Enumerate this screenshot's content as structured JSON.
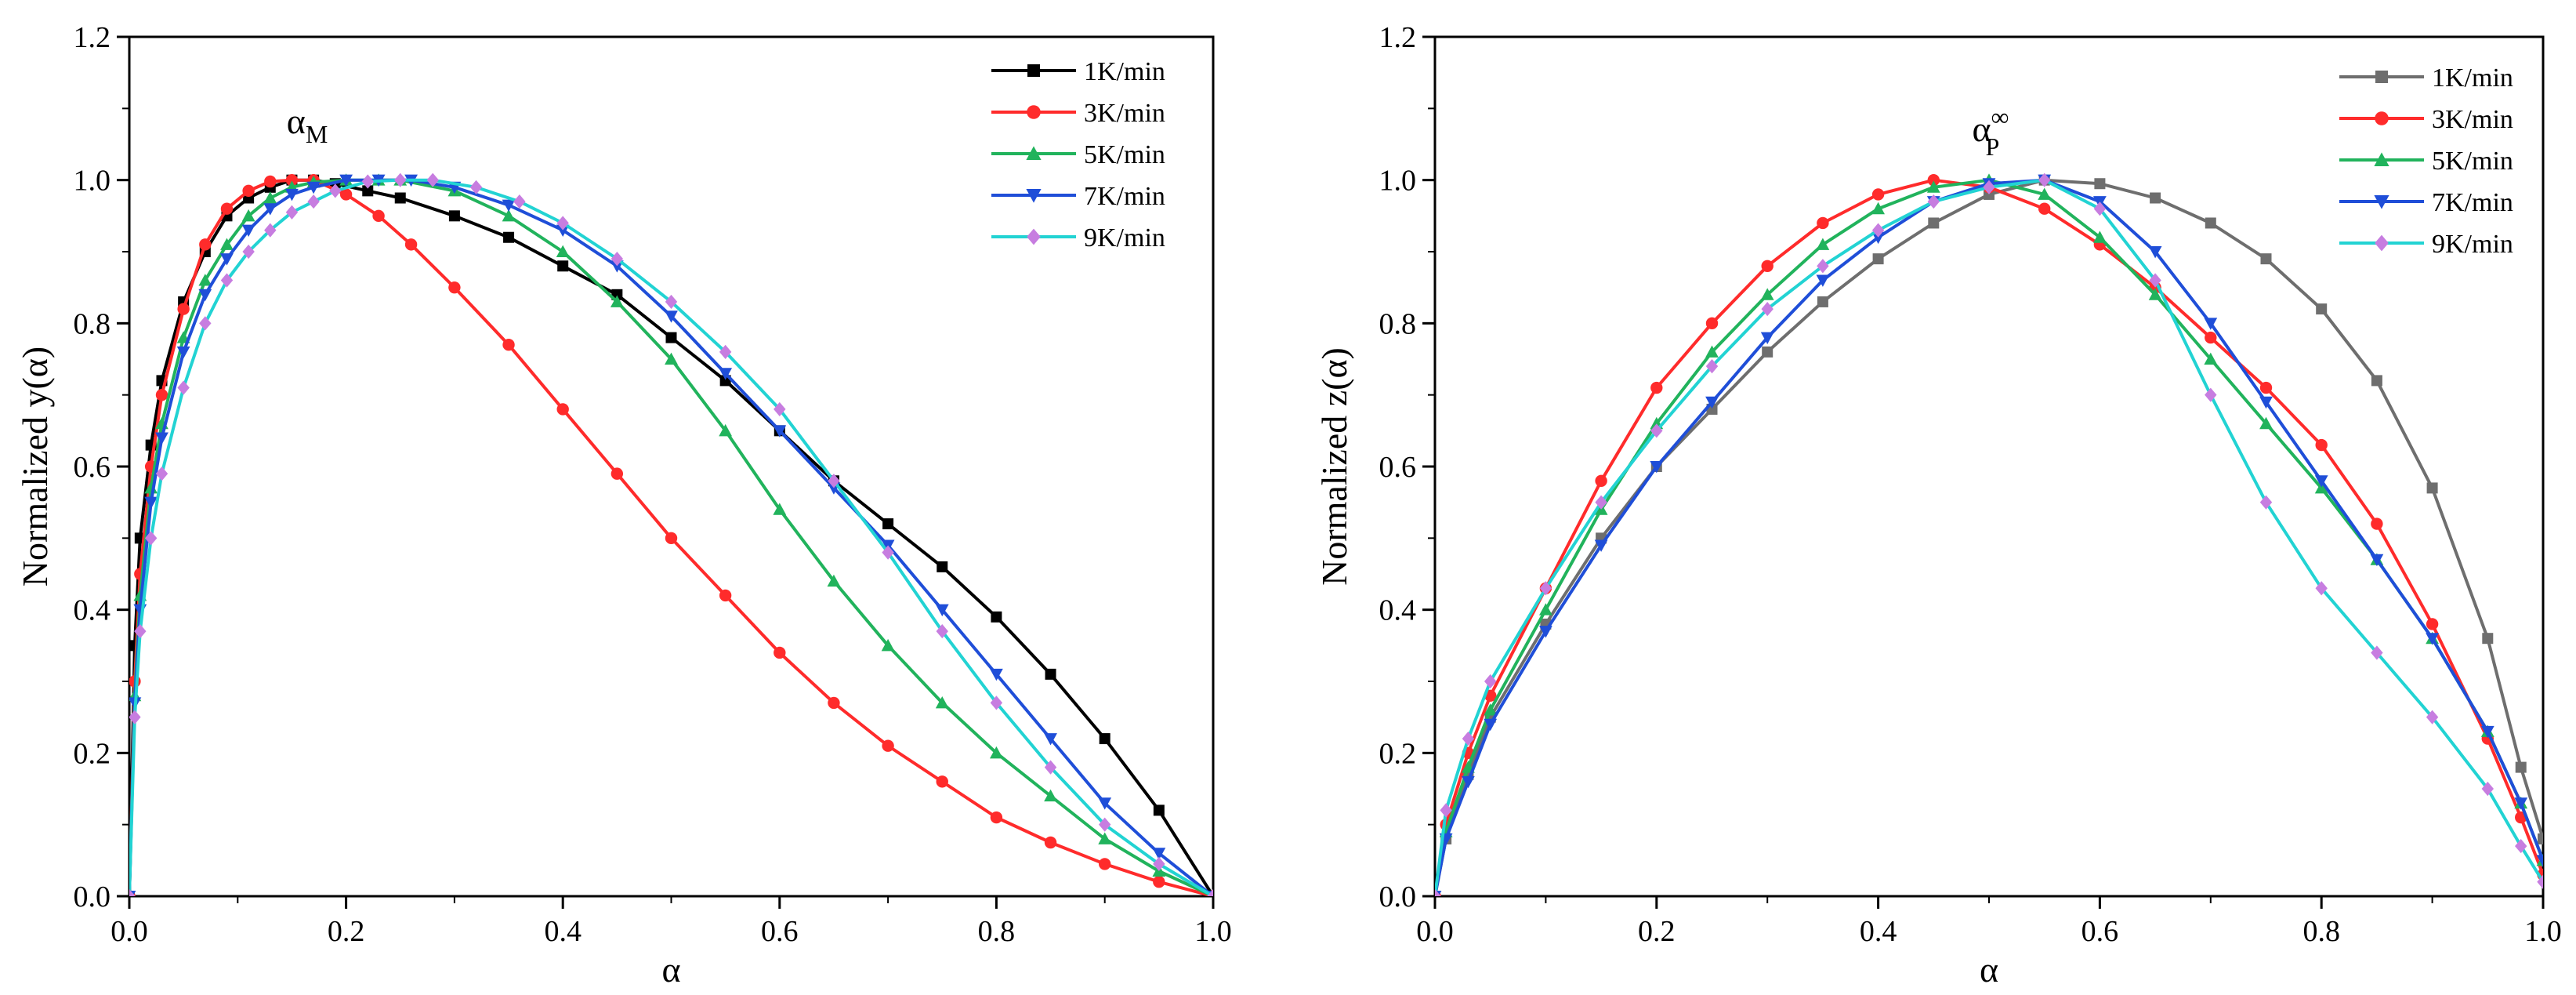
{
  "chart_data": [
    {
      "type": "line",
      "id": "left",
      "title": "",
      "xlabel": "α",
      "ylabel": "Normalized y(α)",
      "xlim": [
        0.0,
        1.0
      ],
      "ylim": [
        0.0,
        1.2
      ],
      "xticks": [
        "0.0",
        "0.2",
        "0.4",
        "0.6",
        "0.8",
        "1.0"
      ],
      "yticks": [
        "0.0",
        "0.2",
        "0.4",
        "0.6",
        "0.8",
        "1.0",
        "1.2"
      ],
      "legend_position": "top-right",
      "annotation": {
        "base": "α",
        "sub": "M",
        "sup": ""
      },
      "series": [
        {
          "name": "1K/min",
          "color": "#000000",
          "marker": "square",
          "x": [
            0,
            0.005,
            0.01,
            0.02,
            0.03,
            0.05,
            0.07,
            0.09,
            0.11,
            0.13,
            0.15,
            0.17,
            0.19,
            0.22,
            0.25,
            0.3,
            0.35,
            0.4,
            0.45,
            0.5,
            0.55,
            0.6,
            0.65,
            0.7,
            0.75,
            0.8,
            0.85,
            0.9,
            0.95,
            1.0
          ],
          "y": [
            0,
            0.35,
            0.5,
            0.63,
            0.72,
            0.83,
            0.9,
            0.95,
            0.975,
            0.99,
            1.0,
            1.0,
            0.995,
            0.985,
            0.975,
            0.95,
            0.92,
            0.88,
            0.84,
            0.78,
            0.72,
            0.65,
            0.58,
            0.52,
            0.46,
            0.39,
            0.31,
            0.22,
            0.12,
            0.0
          ]
        },
        {
          "name": "3K/min",
          "color": "#ff2b2b",
          "marker": "circle",
          "x": [
            0,
            0.005,
            0.01,
            0.02,
            0.03,
            0.05,
            0.07,
            0.09,
            0.11,
            0.13,
            0.15,
            0.17,
            0.2,
            0.23,
            0.26,
            0.3,
            0.35,
            0.4,
            0.45,
            0.5,
            0.55,
            0.6,
            0.65,
            0.7,
            0.75,
            0.8,
            0.85,
            0.9,
            0.95,
            1.0
          ],
          "y": [
            0,
            0.3,
            0.45,
            0.6,
            0.7,
            0.82,
            0.91,
            0.96,
            0.985,
            0.998,
            1.0,
            1.0,
            0.98,
            0.95,
            0.91,
            0.85,
            0.77,
            0.68,
            0.59,
            0.5,
            0.42,
            0.34,
            0.27,
            0.21,
            0.16,
            0.11,
            0.075,
            0.045,
            0.02,
            0.0
          ]
        },
        {
          "name": "5K/min",
          "color": "#21b35c",
          "marker": "triangle-up",
          "x": [
            0,
            0.005,
            0.01,
            0.02,
            0.03,
            0.05,
            0.07,
            0.09,
            0.11,
            0.13,
            0.15,
            0.17,
            0.2,
            0.23,
            0.25,
            0.3,
            0.35,
            0.4,
            0.45,
            0.5,
            0.55,
            0.6,
            0.65,
            0.7,
            0.75,
            0.8,
            0.85,
            0.9,
            0.95,
            1.0
          ],
          "y": [
            0,
            0.28,
            0.42,
            0.57,
            0.66,
            0.78,
            0.86,
            0.91,
            0.95,
            0.975,
            0.99,
            0.997,
            1.0,
            1.0,
            1.0,
            0.985,
            0.95,
            0.9,
            0.83,
            0.75,
            0.65,
            0.54,
            0.44,
            0.35,
            0.27,
            0.2,
            0.14,
            0.08,
            0.035,
            0.0
          ]
        },
        {
          "name": "7K/min",
          "color": "#1f4ed8",
          "marker": "triangle-down",
          "x": [
            0,
            0.005,
            0.01,
            0.02,
            0.03,
            0.05,
            0.07,
            0.09,
            0.11,
            0.13,
            0.15,
            0.17,
            0.2,
            0.23,
            0.26,
            0.3,
            0.35,
            0.4,
            0.45,
            0.5,
            0.55,
            0.6,
            0.65,
            0.7,
            0.75,
            0.8,
            0.85,
            0.9,
            0.95,
            1.0
          ],
          "y": [
            0,
            0.27,
            0.4,
            0.55,
            0.64,
            0.76,
            0.84,
            0.89,
            0.93,
            0.96,
            0.98,
            0.99,
            1.0,
            1.0,
            1.0,
            0.99,
            0.965,
            0.93,
            0.88,
            0.81,
            0.73,
            0.65,
            0.57,
            0.49,
            0.4,
            0.31,
            0.22,
            0.13,
            0.06,
            0.0
          ]
        },
        {
          "name": "9K/min",
          "color": "#c77de0",
          "marker": "diamond",
          "line_color": "#22d3d3",
          "x": [
            0,
            0.005,
            0.01,
            0.02,
            0.03,
            0.05,
            0.07,
            0.09,
            0.11,
            0.13,
            0.15,
            0.17,
            0.19,
            0.22,
            0.25,
            0.28,
            0.32,
            0.36,
            0.4,
            0.45,
            0.5,
            0.55,
            0.6,
            0.65,
            0.7,
            0.75,
            0.8,
            0.85,
            0.9,
            0.95,
            1.0
          ],
          "y": [
            0,
            0.25,
            0.37,
            0.5,
            0.59,
            0.71,
            0.8,
            0.86,
            0.9,
            0.93,
            0.955,
            0.97,
            0.985,
            0.998,
            1.0,
            1.0,
            0.99,
            0.97,
            0.94,
            0.89,
            0.83,
            0.76,
            0.68,
            0.58,
            0.48,
            0.37,
            0.27,
            0.18,
            0.1,
            0.045,
            0.0
          ]
        }
      ]
    },
    {
      "type": "line",
      "id": "right",
      "title": "",
      "xlabel": "α",
      "ylabel": "Normalized z(α)",
      "xlim": [
        0.0,
        1.0
      ],
      "ylim": [
        0.0,
        1.2
      ],
      "xticks": [
        "0.0",
        "0.2",
        "0.4",
        "0.6",
        "0.8",
        "1.0"
      ],
      "yticks": [
        "0.0",
        "0.2",
        "0.4",
        "0.6",
        "0.8",
        "1.0",
        "1.2"
      ],
      "legend_position": "top-right",
      "annotation": {
        "base": "α",
        "sub": "P",
        "sup": "∞"
      },
      "series": [
        {
          "name": "1K/min",
          "color": "#6e6e6e",
          "marker": "square",
          "x": [
            0,
            0.01,
            0.03,
            0.05,
            0.1,
            0.15,
            0.2,
            0.25,
            0.3,
            0.35,
            0.4,
            0.45,
            0.5,
            0.55,
            0.6,
            0.65,
            0.7,
            0.75,
            0.8,
            0.85,
            0.9,
            0.95,
            0.98,
            1.0
          ],
          "y": [
            0,
            0.08,
            0.17,
            0.25,
            0.38,
            0.5,
            0.6,
            0.68,
            0.76,
            0.83,
            0.89,
            0.94,
            0.98,
            1.0,
            0.995,
            0.975,
            0.94,
            0.89,
            0.82,
            0.72,
            0.57,
            0.36,
            0.18,
            0.08
          ]
        },
        {
          "name": "3K/min",
          "color": "#ff2b2b",
          "marker": "circle",
          "x": [
            0,
            0.01,
            0.03,
            0.05,
            0.1,
            0.15,
            0.2,
            0.25,
            0.3,
            0.35,
            0.4,
            0.45,
            0.5,
            0.55,
            0.6,
            0.65,
            0.7,
            0.75,
            0.8,
            0.85,
            0.9,
            0.95,
            0.98,
            1.0
          ],
          "y": [
            0,
            0.1,
            0.2,
            0.28,
            0.43,
            0.58,
            0.71,
            0.8,
            0.88,
            0.94,
            0.98,
            1.0,
            0.99,
            0.96,
            0.91,
            0.85,
            0.78,
            0.71,
            0.63,
            0.52,
            0.38,
            0.22,
            0.11,
            0.03
          ]
        },
        {
          "name": "5K/min",
          "color": "#21b35c",
          "marker": "triangle-up",
          "x": [
            0,
            0.01,
            0.03,
            0.05,
            0.1,
            0.15,
            0.2,
            0.25,
            0.3,
            0.35,
            0.4,
            0.45,
            0.5,
            0.55,
            0.6,
            0.65,
            0.7,
            0.75,
            0.8,
            0.85,
            0.9,
            0.95,
            0.98,
            1.0
          ],
          "y": [
            0,
            0.09,
            0.18,
            0.26,
            0.4,
            0.54,
            0.66,
            0.76,
            0.84,
            0.91,
            0.96,
            0.99,
            1.0,
            0.98,
            0.92,
            0.84,
            0.75,
            0.66,
            0.57,
            0.47,
            0.36,
            0.23,
            0.13,
            0.05
          ]
        },
        {
          "name": "7K/min",
          "color": "#1f4ed8",
          "marker": "triangle-down",
          "x": [
            0,
            0.01,
            0.03,
            0.05,
            0.1,
            0.15,
            0.2,
            0.25,
            0.3,
            0.35,
            0.4,
            0.45,
            0.5,
            0.55,
            0.6,
            0.65,
            0.7,
            0.75,
            0.8,
            0.85,
            0.9,
            0.95,
            0.98,
            1.0
          ],
          "y": [
            0,
            0.08,
            0.16,
            0.24,
            0.37,
            0.49,
            0.6,
            0.69,
            0.78,
            0.86,
            0.92,
            0.97,
            0.995,
            1.0,
            0.97,
            0.9,
            0.8,
            0.69,
            0.58,
            0.47,
            0.36,
            0.23,
            0.13,
            0.05
          ]
        },
        {
          "name": "9K/min",
          "color": "#c77de0",
          "marker": "diamond",
          "line_color": "#22d3d3",
          "x": [
            0,
            0.01,
            0.03,
            0.05,
            0.1,
            0.15,
            0.2,
            0.25,
            0.3,
            0.35,
            0.4,
            0.45,
            0.5,
            0.55,
            0.6,
            0.65,
            0.7,
            0.75,
            0.8,
            0.85,
            0.9,
            0.95,
            0.98,
            1.0
          ],
          "y": [
            0,
            0.12,
            0.22,
            0.3,
            0.43,
            0.55,
            0.65,
            0.74,
            0.82,
            0.88,
            0.93,
            0.97,
            0.99,
            1.0,
            0.96,
            0.86,
            0.7,
            0.55,
            0.43,
            0.34,
            0.25,
            0.15,
            0.07,
            0.02
          ]
        }
      ]
    }
  ]
}
